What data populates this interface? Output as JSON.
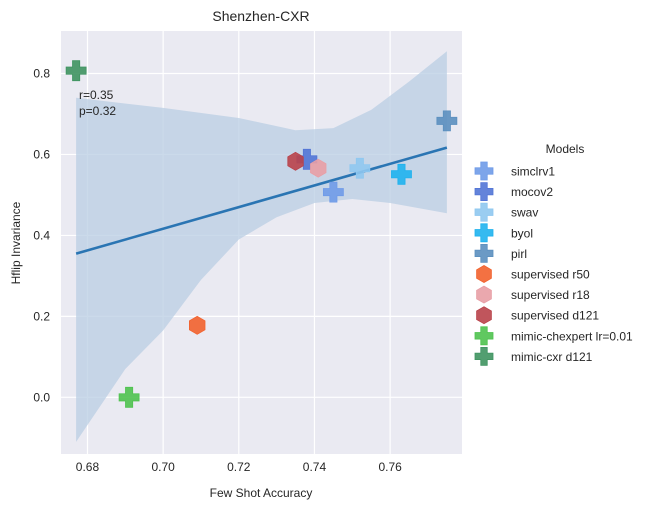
{
  "chart_data": {
    "type": "scatter",
    "title": "Shenzhen-CXR",
    "xlabel": "Few Shot Accuracy",
    "ylabel": "Hflip Invariance",
    "xlim": [
      0.673,
      0.779
    ],
    "ylim": [
      -0.14,
      0.905
    ],
    "xticks": [
      0.68,
      0.7,
      0.72,
      0.74,
      0.76
    ],
    "xtick_labels": [
      "0.68",
      "0.70",
      "0.72",
      "0.74",
      "0.76"
    ],
    "yticks": [
      0.0,
      0.2,
      0.4,
      0.6,
      0.8
    ],
    "ytick_labels": [
      "0.0",
      "0.2",
      "0.4",
      "0.6",
      "0.8"
    ],
    "grid": true,
    "legend_title": "Models",
    "legend_position": "right",
    "annotation": {
      "lines": [
        "r=0.35",
        "p=0.32"
      ]
    },
    "regression": {
      "x": [
        0.677,
        0.775
      ],
      "y": [
        0.355,
        0.617
      ],
      "color": "#2a75b3",
      "ci_color": "#b9cde3",
      "ci_upper": [
        [
          0.677,
          0.74
        ],
        [
          0.7,
          0.715
        ],
        [
          0.72,
          0.69
        ],
        [
          0.735,
          0.66
        ],
        [
          0.745,
          0.665
        ],
        [
          0.755,
          0.71
        ],
        [
          0.765,
          0.78
        ],
        [
          0.775,
          0.855
        ]
      ],
      "ci_lower": [
        [
          0.677,
          -0.11
        ],
        [
          0.69,
          0.07
        ],
        [
          0.7,
          0.165
        ],
        [
          0.71,
          0.29
        ],
        [
          0.72,
          0.39
        ],
        [
          0.73,
          0.445
        ],
        [
          0.74,
          0.48
        ],
        [
          0.75,
          0.49
        ],
        [
          0.76,
          0.48
        ],
        [
          0.775,
          0.455
        ]
      ]
    },
    "series": [
      {
        "name": "simclrv1",
        "marker": "plus",
        "color": "#6f9be8",
        "x": [
          0.745
        ],
        "y": [
          0.507
        ]
      },
      {
        "name": "mocov2",
        "marker": "plus",
        "color": "#5275d6",
        "x": [
          0.738
        ],
        "y": [
          0.588
        ]
      },
      {
        "name": "swav",
        "marker": "plus",
        "color": "#8fc8f0",
        "x": [
          0.752
        ],
        "y": [
          0.566
        ]
      },
      {
        "name": "byol",
        "marker": "plus",
        "color": "#1fb2ee",
        "x": [
          0.763
        ],
        "y": [
          0.551
        ]
      },
      {
        "name": "pirl",
        "marker": "plus",
        "color": "#5b8fbf",
        "x": [
          0.775
        ],
        "y": [
          0.683
        ]
      },
      {
        "name": "supervised r50",
        "marker": "hexagon",
        "color": "#f2622e",
        "x": [
          0.709
        ],
        "y": [
          0.178
        ]
      },
      {
        "name": "supervised r18",
        "marker": "hexagon",
        "color": "#e89ea5",
        "x": [
          0.741
        ],
        "y": [
          0.566
        ]
      },
      {
        "name": "supervised d121",
        "marker": "hexagon",
        "color": "#b9424a",
        "x": [
          0.735
        ],
        "y": [
          0.583
        ]
      },
      {
        "name": "mimic-chexpert lr=0.01",
        "marker": "plus",
        "color": "#4fc24f",
        "x": [
          0.691
        ],
        "y": [
          0.0
        ]
      },
      {
        "name": "mimic-cxr d121",
        "marker": "plus",
        "color": "#3f9461",
        "x": [
          0.677
        ],
        "y": [
          0.807
        ]
      }
    ]
  }
}
